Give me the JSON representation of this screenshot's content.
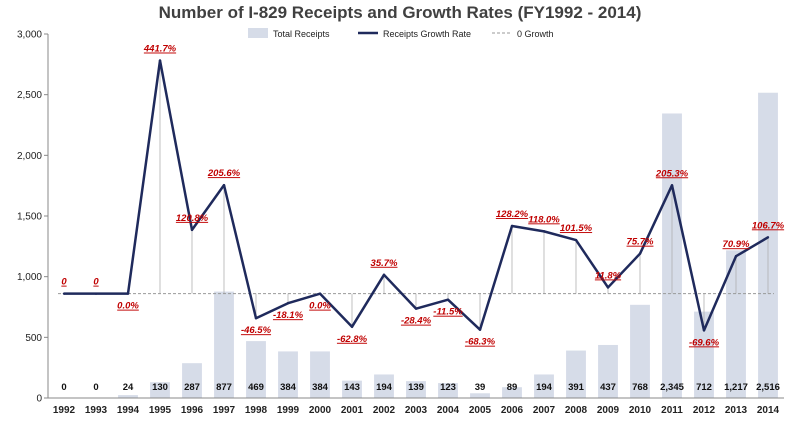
{
  "chart_data": {
    "type": "bar+line",
    "title": "Number of I-829 Receipts and Growth Rates (FY1992 - 2014)",
    "categories": [
      "1992",
      "1993",
      "1994",
      "1995",
      "1996",
      "1997",
      "1998",
      "1999",
      "2000",
      "2001",
      "2002",
      "2003",
      "2004",
      "2005",
      "2006",
      "2007",
      "2008",
      "2009",
      "2010",
      "2011",
      "2012",
      "2013",
      "2014"
    ],
    "series": [
      {
        "name": "Total Receipts",
        "type": "bar",
        "color": "#d6dce8",
        "values": [
          0,
          0,
          24,
          130,
          287,
          877,
          469,
          384,
          384,
          143,
          194,
          139,
          123,
          39,
          89,
          194,
          391,
          437,
          768,
          2345,
          712,
          1217,
          2516
        ],
        "labels": [
          "0",
          "0",
          "24",
          "130",
          "287",
          "877",
          "469",
          "384",
          "384",
          "143",
          "194",
          "139",
          "123",
          "39",
          "89",
          "194",
          "391",
          "437",
          "768",
          "2,345",
          "712",
          "1,217",
          "2,516"
        ]
      },
      {
        "name": "Receipts Growth Rate",
        "type": "line",
        "color": "#1f2a5c",
        "values": [
          0,
          0,
          0,
          441.7,
          120.8,
          205.6,
          -46.5,
          -18.1,
          0.0,
          -62.8,
          35.7,
          -28.4,
          -11.5,
          -68.3,
          128.2,
          118.0,
          101.5,
          11.8,
          75.7,
          205.3,
          -69.6,
          70.9,
          106.7
        ],
        "labels": [
          "0",
          "0",
          "0.0%",
          "441.7%",
          "120.8%",
          "205.6%",
          "-46.5%",
          "-18.1%",
          "0.0%",
          "-62.8%",
          "35.7%",
          "-28.4%",
          "-11.5%",
          "-68.3%",
          "128.2%",
          "118.0%",
          "101.5%",
          "11.8%",
          "75.7%",
          "205.3%",
          "-69.6%",
          "70.9%",
          "106.7%"
        ]
      },
      {
        "name": "0 Growth",
        "type": "reference-line",
        "color": "#999999",
        "value": 0
      }
    ],
    "ylim": [
      0,
      3000
    ],
    "yticks": [
      0,
      500,
      1000,
      1500,
      2000,
      2500,
      3000
    ],
    "ytick_labels": [
      "0",
      "500",
      "1,000",
      "1,500",
      "2,000",
      "2,500",
      "3,000"
    ],
    "growth_axis_zero_in_receipt_units": 860,
    "growth_axis_receipts_per_percent": 4.35,
    "legend_position": "top-center",
    "grid": false
  }
}
